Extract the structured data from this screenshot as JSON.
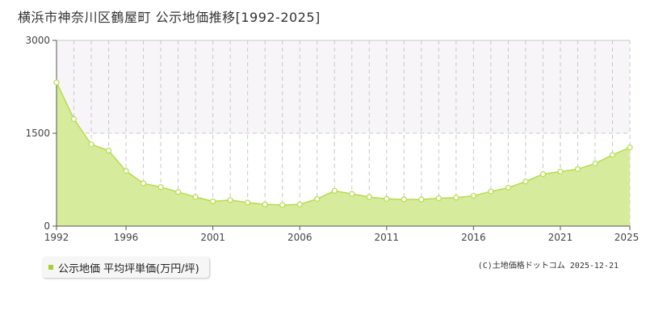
{
  "title": "横浜市神奈川区鶴屋町 公示地価推移[1992-2025]",
  "legend": {
    "label": "公示地価 平均坪単価(万円/坪)"
  },
  "copyright": "(C)土地価格ドットコム 2025-12-21",
  "colors": {
    "area_fill": "#d6ec9c",
    "line": "#b7dc4a",
    "marker_fill": "#ffffff",
    "legend_swatch": "#a8cf2f",
    "band": "#f7f5f8"
  },
  "chart_data": {
    "type": "area",
    "title": "横浜市神奈川区鶴屋町 公示地価推移[1992-2025]",
    "x": [
      1992,
      1993,
      1994,
      1995,
      1996,
      1997,
      1998,
      1999,
      2000,
      2001,
      2002,
      2003,
      2004,
      2005,
      2006,
      2007,
      2008,
      2009,
      2010,
      2011,
      2012,
      2013,
      2014,
      2015,
      2016,
      2017,
      2018,
      2019,
      2020,
      2021,
      2022,
      2023,
      2024,
      2025
    ],
    "series": [
      {
        "name": "公示地価 平均坪単価(万円/坪)",
        "values": [
          2320,
          1730,
          1320,
          1220,
          890,
          690,
          630,
          550,
          470,
          400,
          420,
          380,
          350,
          340,
          350,
          440,
          570,
          520,
          470,
          440,
          430,
          430,
          450,
          460,
          490,
          560,
          620,
          720,
          840,
          880,
          920,
          1010,
          1150,
          1270
        ]
      }
    ],
    "xlim": [
      1992,
      2025
    ],
    "ylim": [
      0,
      3000
    ],
    "y_ticks": [
      "0",
      "1500",
      "3000"
    ],
    "x_tick_labels": [
      "1992",
      "1996",
      "2001",
      "2006",
      "2011",
      "2016",
      "2021",
      "2025"
    ],
    "x_tick_values": [
      1992,
      1996,
      2001,
      2006,
      2011,
      2016,
      2021,
      2025
    ],
    "grid": true,
    "legend_position": "bottom-left"
  }
}
